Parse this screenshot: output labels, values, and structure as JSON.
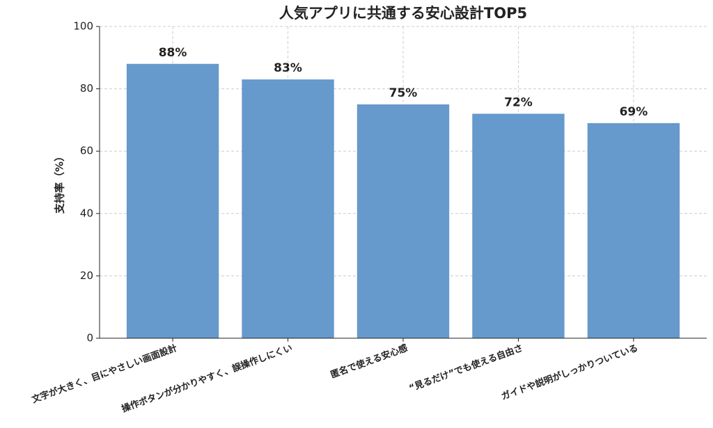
{
  "chart_data": {
    "type": "bar",
    "title": "人気アプリに共通する安心設計TOP5",
    "categories": [
      "文字が大きく、目にやさしい画面設計",
      "操作ボタンが分かりやすく、誤操作しにくい",
      "匿名で使える安心感",
      "“見るだけ”でも使える自由さ",
      "ガイドや説明がしっかりついている"
    ],
    "values": [
      88,
      83,
      75,
      72,
      69
    ],
    "value_labels": [
      "88%",
      "83%",
      "75%",
      "72%",
      "69%"
    ],
    "y_label": "支持率（%）",
    "color": "#6699cc",
    "ylim": [
      0,
      100
    ],
    "yticks": [
      0,
      20,
      40,
      60,
      80,
      100
    ],
    "grid": true
  }
}
